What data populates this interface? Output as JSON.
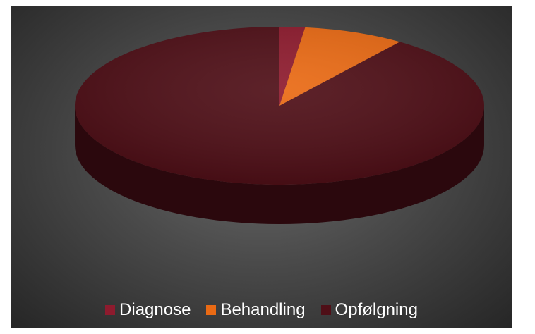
{
  "chart_data": {
    "type": "pie",
    "style": "3d",
    "categories": [
      "Diagnose",
      "Behandling",
      "Opfølgning"
    ],
    "values": [
      2,
      8,
      90
    ],
    "colors": [
      "#8e1b2e",
      "#ea6a14",
      "#4f0f17"
    ],
    "title": "",
    "legend": "bottom"
  }
}
